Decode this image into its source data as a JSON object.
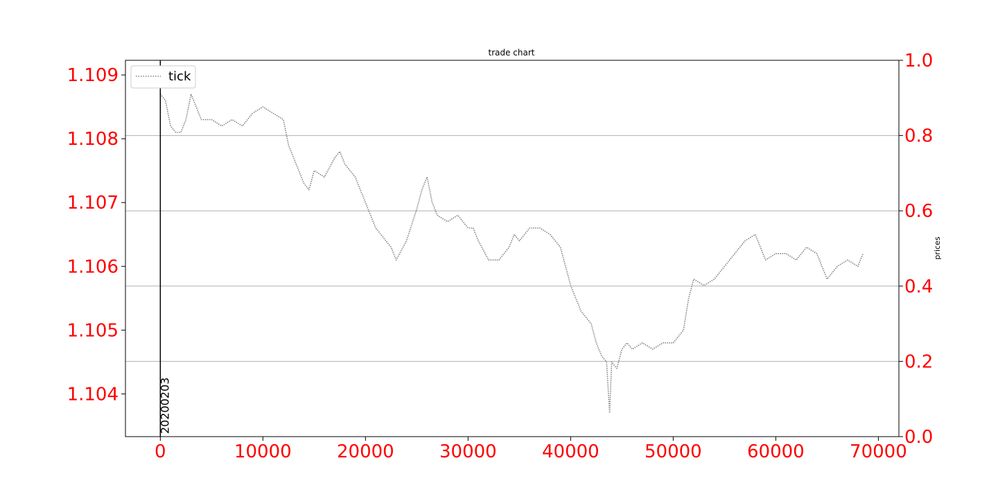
{
  "chart_data": {
    "type": "line",
    "title": "trade chart",
    "xlabel": "",
    "ylabel_left": "",
    "ylabel_right": "prices",
    "xlim": [
      -3400,
      72000
    ],
    "ylim_left": [
      1.10333,
      1.10923
    ],
    "ylim_right": [
      0.0,
      1.0
    ],
    "x_ticks": [
      0,
      10000,
      20000,
      30000,
      40000,
      50000,
      60000,
      70000
    ],
    "x_tick_labels": [
      "0",
      "10000",
      "20000",
      "30000",
      "40000",
      "50000",
      "60000",
      "70000"
    ],
    "y_left_ticks": [
      1.104,
      1.105,
      1.106,
      1.107,
      1.108,
      1.109
    ],
    "y_left_tick_labels": [
      "1.104",
      "1.105",
      "1.106",
      "1.107",
      "1.108",
      "1.109"
    ],
    "y_right_ticks": [
      0.0,
      0.2,
      0.4,
      0.6,
      0.8,
      1.0
    ],
    "y_right_tick_labels": [
      "0.0",
      "0.2",
      "0.4",
      "0.6",
      "0.8",
      "1.0"
    ],
    "grid": "horizontal-right-axis",
    "legend": {
      "placement": "top-left",
      "entries": [
        {
          "label": "tick",
          "style": "dotted",
          "color": "#808080"
        }
      ]
    },
    "vertical_markers": [
      {
        "x": 0,
        "label": "20200203"
      }
    ],
    "tick_label_color": "#ff0000",
    "line_color": "#808080",
    "series": [
      {
        "name": "tick",
        "x": [
          0,
          500,
          1000,
          1500,
          2000,
          2500,
          3000,
          3500,
          4000,
          5000,
          6000,
          7000,
          8000,
          9000,
          10000,
          11000,
          12000,
          12500,
          13000,
          14000,
          14500,
          15000,
          16000,
          17000,
          17500,
          18000,
          18500,
          19000,
          20000,
          21000,
          22000,
          22500,
          23000,
          24000,
          25000,
          25500,
          26000,
          26500,
          27000,
          28000,
          29000,
          30000,
          30500,
          31000,
          32000,
          33000,
          34000,
          34500,
          35000,
          36000,
          37000,
          38000,
          39000,
          40000,
          41000,
          42000,
          42500,
          43000,
          43500,
          43800,
          44000,
          44500,
          45000,
          45500,
          46000,
          47000,
          48000,
          49000,
          50000,
          50500,
          51000,
          51500,
          52000,
          53000,
          54000,
          55000,
          56000,
          57000,
          58000,
          59000,
          60000,
          61000,
          62000,
          63000,
          64000,
          65000,
          66000,
          67000,
          68000,
          68500
        ],
        "y": [
          1.1087,
          1.1086,
          1.1082,
          1.1081,
          1.1081,
          1.1083,
          1.1087,
          1.1085,
          1.1083,
          1.1083,
          1.1082,
          1.1083,
          1.1082,
          1.1084,
          1.1085,
          1.1084,
          1.1083,
          1.1079,
          1.1077,
          1.1073,
          1.1072,
          1.1075,
          1.1074,
          1.1077,
          1.1078,
          1.1076,
          1.1075,
          1.1074,
          1.107,
          1.1066,
          1.1064,
          1.1063,
          1.1061,
          1.1064,
          1.1069,
          1.1072,
          1.1074,
          1.107,
          1.1068,
          1.1067,
          1.1068,
          1.1066,
          1.1066,
          1.1064,
          1.1061,
          1.1061,
          1.1063,
          1.1065,
          1.1064,
          1.1066,
          1.1066,
          1.1065,
          1.1063,
          1.1057,
          1.1053,
          1.1051,
          1.1048,
          1.1046,
          1.1045,
          1.1037,
          1.1045,
          1.1044,
          1.1047,
          1.1048,
          1.1047,
          1.1048,
          1.1047,
          1.1048,
          1.1048,
          1.1049,
          1.105,
          1.1055,
          1.1058,
          1.1057,
          1.1058,
          1.106,
          1.1062,
          1.1064,
          1.1065,
          1.1061,
          1.1062,
          1.1062,
          1.1061,
          1.1063,
          1.1062,
          1.1058,
          1.106,
          1.1061,
          1.106,
          1.1062
        ]
      }
    ]
  }
}
